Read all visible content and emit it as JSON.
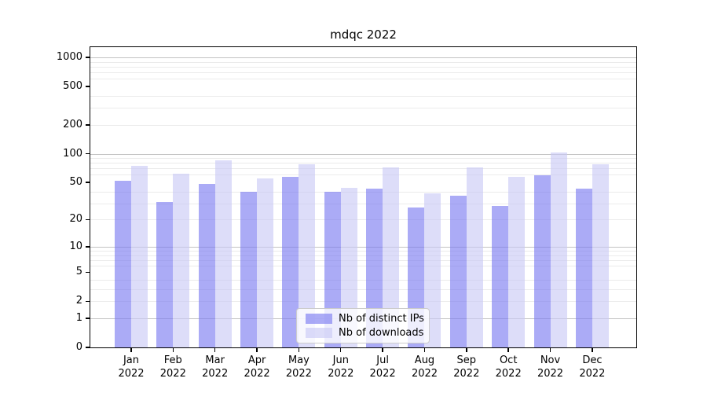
{
  "title": "mdqc 2022",
  "chart_data": {
    "type": "bar",
    "title": "mdqc 2022",
    "xlabel": "",
    "ylabel": "",
    "yscale": "symlog",
    "ylim": [
      0,
      1280
    ],
    "grid": true,
    "legend_position": "lower center",
    "categories": [
      "Jan 2022",
      "Feb 2022",
      "Mar 2022",
      "Apr 2022",
      "May 2022",
      "Jun 2022",
      "Jul 2022",
      "Aug 2022",
      "Sep 2022",
      "Oct 2022",
      "Nov 2022",
      "Dec 2022"
    ],
    "series": [
      {
        "name": "Nb of distinct IPs",
        "color": "rgba(120,120,240,0.62)",
        "values": [
          52,
          31,
          48,
          40,
          57,
          40,
          43,
          27,
          36,
          28,
          59,
          43
        ]
      },
      {
        "name": "Nb of downloads",
        "color": "rgba(200,200,245,0.62)",
        "values": [
          74,
          62,
          86,
          55,
          77,
          44,
          72,
          38,
          72,
          57,
          103,
          78
        ]
      }
    ],
    "y_ticks": [
      0,
      1,
      2,
      5,
      10,
      20,
      50,
      100,
      200,
      500,
      1000
    ],
    "y_minor_gridlines": [
      2,
      3,
      4,
      6,
      7,
      8,
      9,
      20,
      30,
      40,
      60,
      70,
      80,
      90,
      200,
      300,
      400,
      600,
      700,
      800,
      900
    ],
    "y_major_gridlines": [
      1,
      10,
      100,
      1000
    ]
  },
  "colors": {
    "axis": "#000000",
    "grid_major": "#c2c2c2",
    "grid_minor": "#ebebeb",
    "legend_border": "#cccccc",
    "title_text": "#000000"
  }
}
